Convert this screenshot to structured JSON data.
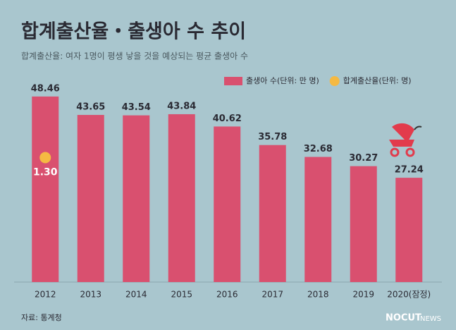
{
  "chart_data": {
    "type": "bar",
    "title": "합계출산율・출생아 수 추이",
    "subtitle": "합계출산율: 여자 1명이 평생 낳을 것을 예상되는 평균 출생아 수",
    "categories": [
      "2012",
      "2013",
      "2014",
      "2015",
      "2016",
      "2017",
      "2018",
      "2019",
      "2020(잠정)"
    ],
    "series": [
      {
        "name": "출생아 수(단위: 만 명)",
        "type": "bar",
        "color": "#d9506f",
        "values": [
          48.46,
          43.65,
          43.54,
          43.84,
          40.62,
          35.78,
          32.68,
          30.27,
          27.24
        ]
      },
      {
        "name": "합계출산율(단위: 명)",
        "type": "line",
        "axis": "y2",
        "color": "#f5b942",
        "values": [
          1.3,
          null,
          null,
          null,
          null,
          null,
          null,
          null,
          null
        ],
        "value_labels": [
          "1.30",
          null,
          null,
          null,
          null,
          null,
          null,
          null,
          null
        ]
      }
    ],
    "ylim": [
      0,
      50
    ],
    "y2lim": [
      0,
      2
    ],
    "legend": "top-right",
    "source": "자료: 통계청",
    "brand": [
      "NOCUT",
      "NEWS"
    ]
  }
}
